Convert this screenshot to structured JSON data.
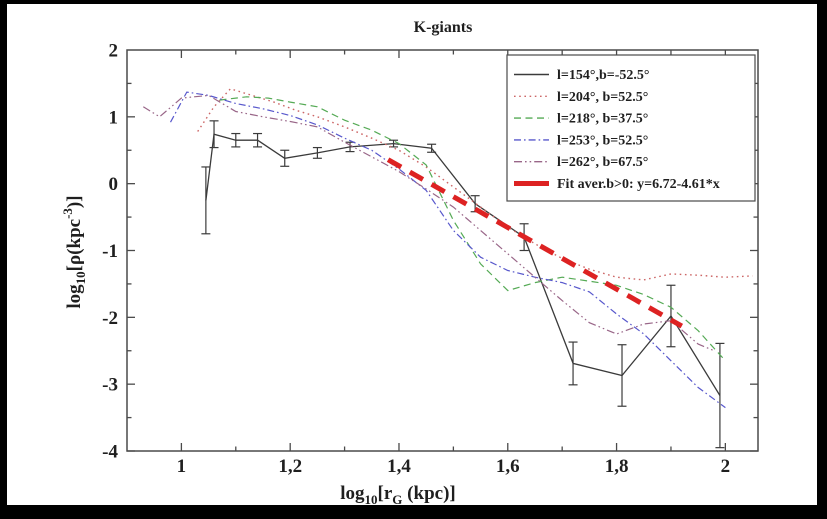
{
  "figure": {
    "border_color": "#000000",
    "background": "#ffffff",
    "frame_color": "#4a4a4a",
    "text_color": "#1f1f1f"
  },
  "chart_data": {
    "type": "line",
    "title": "K-giants",
    "xlabel_plain": "log10[rG (kpc)]",
    "ylabel_plain": "log10[p(kpc-3)]",
    "xlabel_parts": [
      {
        "t": "log"
      },
      {
        "t": "10",
        "s": "sub"
      },
      {
        "t": "[r"
      },
      {
        "t": "G",
        "s": "sub"
      },
      {
        "t": " (kpc)]"
      }
    ],
    "ylabel_parts": [
      {
        "t": "log"
      },
      {
        "t": "10",
        "s": "sub"
      },
      {
        "t": "[ρ(kpc"
      },
      {
        "t": "-3",
        "s": "sup"
      },
      {
        "t": ")]"
      }
    ],
    "xlim": [
      0.9,
      2.06
    ],
    "ylim": [
      -4,
      2
    ],
    "x_major_ticks": [
      1,
      1.2,
      1.4,
      1.6,
      1.8,
      2
    ],
    "x_tick_labels": [
      "1",
      "1,2",
      "1,4",
      "1,6",
      "1,8",
      "2"
    ],
    "x_minor_step": 0.1,
    "y_major_ticks": [
      -4,
      -3,
      -2,
      -1,
      0,
      1,
      2
    ],
    "y_tick_labels": [
      "-4",
      "-3",
      "-2",
      "-1",
      "0",
      "1",
      "2"
    ],
    "y_minor_step": 0.5,
    "grid": false,
    "legend_position": "top-right",
    "series": [
      {
        "name": "l=154°,b=-52.5°",
        "color": "#3b3b3b",
        "style": "solid",
        "width": 1.3,
        "x": [
          1.045,
          1.06,
          1.1,
          1.14,
          1.19,
          1.25,
          1.31,
          1.39,
          1.46,
          1.54,
          1.63,
          1.72,
          1.81,
          1.9,
          1.99
        ],
        "y": [
          -0.25,
          0.74,
          0.65,
          0.65,
          0.38,
          0.46,
          0.55,
          0.6,
          0.53,
          -0.3,
          -0.8,
          -2.69,
          -2.87,
          -1.98,
          -3.17
        ],
        "yerr": [
          0.5,
          0.2,
          0.1,
          0.1,
          0.12,
          0.08,
          0.07,
          0.05,
          0.06,
          0.12,
          0.2,
          0.32,
          0.46,
          0.46,
          0.78
        ]
      },
      {
        "name": "l=204°, b=52.5°",
        "color": "#cc6666",
        "style": "dotted",
        "width": 1.4,
        "x": [
          1.03,
          1.06,
          1.09,
          1.13,
          1.17,
          1.21,
          1.25,
          1.3,
          1.35,
          1.4,
          1.45,
          1.5,
          1.55,
          1.6,
          1.65,
          1.7,
          1.75,
          1.8,
          1.85,
          1.9,
          1.95,
          2.0,
          2.05
        ],
        "y": [
          0.78,
          1.15,
          1.42,
          1.32,
          1.22,
          1.1,
          1.0,
          0.85,
          0.68,
          0.5,
          0.25,
          -0.05,
          -0.35,
          -0.65,
          -0.9,
          -1.12,
          -1.28,
          -1.4,
          -1.44,
          -1.35,
          -1.37,
          -1.4,
          -1.38
        ]
      },
      {
        "name": "l=218°, b=37.5°",
        "color": "#55aa55",
        "style": "dashed",
        "width": 1.2,
        "x": [
          1.07,
          1.12,
          1.16,
          1.2,
          1.25,
          1.3,
          1.35,
          1.4,
          1.45,
          1.5,
          1.55,
          1.6,
          1.65,
          1.7,
          1.75,
          1.8,
          1.85,
          1.9,
          1.95,
          2.0
        ],
        "y": [
          1.25,
          1.3,
          1.28,
          1.22,
          1.15,
          0.95,
          0.8,
          0.6,
          0.28,
          -0.55,
          -1.2,
          -1.6,
          -1.48,
          -1.4,
          -1.46,
          -1.52,
          -1.66,
          -1.85,
          -2.2,
          -2.65
        ]
      },
      {
        "name": "l=253°, b=52.5°",
        "color": "#5858cc",
        "style": "dashdot",
        "width": 1.2,
        "x": [
          0.98,
          1.01,
          1.05,
          1.1,
          1.15,
          1.2,
          1.25,
          1.3,
          1.35,
          1.4,
          1.45,
          1.5,
          1.55,
          1.6,
          1.65,
          1.7,
          1.75,
          1.8,
          1.85,
          1.9,
          1.95,
          2.0
        ],
        "y": [
          0.92,
          1.37,
          1.32,
          1.2,
          1.12,
          1.02,
          0.88,
          0.68,
          0.5,
          0.22,
          -0.1,
          -0.7,
          -1.1,
          -1.3,
          -1.4,
          -1.48,
          -1.62,
          -1.95,
          -2.25,
          -2.65,
          -3.05,
          -3.35
        ]
      },
      {
        "name": "l=262°, b=67.5°",
        "color": "#996688",
        "style": "dashdotdot",
        "width": 1.2,
        "x": [
          0.93,
          0.96,
          1.0,
          1.05,
          1.1,
          1.15,
          1.2,
          1.25,
          1.3,
          1.35,
          1.4,
          1.45,
          1.5,
          1.55,
          1.6,
          1.65,
          1.7,
          1.75,
          1.8,
          1.85,
          1.9,
          1.95,
          1.98
        ],
        "y": [
          1.15,
          1.0,
          1.28,
          1.32,
          1.08,
          1.0,
          0.93,
          0.85,
          0.62,
          0.4,
          0.18,
          -0.08,
          -0.35,
          -0.7,
          -1.05,
          -1.4,
          -1.75,
          -2.08,
          -2.25,
          -2.1,
          -2.05,
          -2.4,
          -2.5
        ]
      },
      {
        "name": "Fit aver.b>0: y=6.72-4.61*x",
        "color": "#dd2222",
        "style": "thickdash",
        "width": 5,
        "fit": {
          "intercept": 6.72,
          "slope": -4.61,
          "x_range": [
            1.38,
            1.92
          ]
        }
      }
    ]
  }
}
